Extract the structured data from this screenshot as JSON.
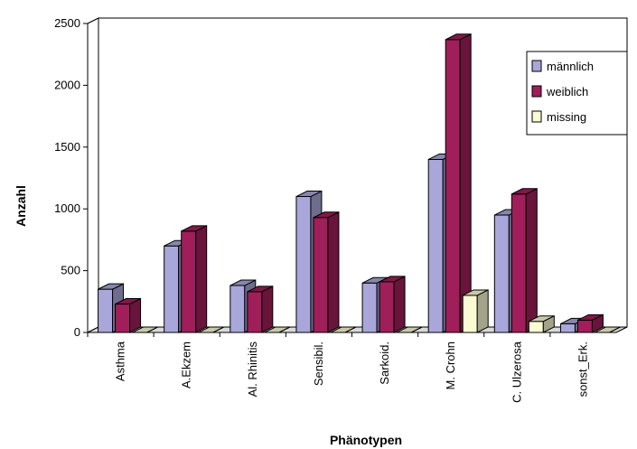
{
  "chart_data": {
    "type": "bar",
    "title": "",
    "xlabel": "Phänotypen",
    "ylabel": "Anzahl",
    "ylim": [
      0,
      2500
    ],
    "yticks": [
      0,
      500,
      1000,
      1500,
      2000,
      2500
    ],
    "grid": true,
    "legend_position": "top-right",
    "categories": [
      "Asthma",
      "A.Ekzem",
      "Al. Rhinitis",
      "Sensibil.",
      "Sarkoid.",
      "M. Crohn",
      "C. Ulzerosa",
      "sonst_Erk."
    ],
    "series": [
      {
        "name": "männlich",
        "color": "#a9a7d9",
        "values": [
          350,
          700,
          380,
          1100,
          400,
          1400,
          950,
          70
        ]
      },
      {
        "name": "weiblich",
        "color": "#a01e5a",
        "values": [
          230,
          820,
          330,
          930,
          410,
          2370,
          1120,
          100
        ]
      },
      {
        "name": "missing",
        "color": "#fbfbd3",
        "values": [
          0,
          0,
          0,
          0,
          0,
          300,
          90,
          0
        ]
      }
    ]
  }
}
